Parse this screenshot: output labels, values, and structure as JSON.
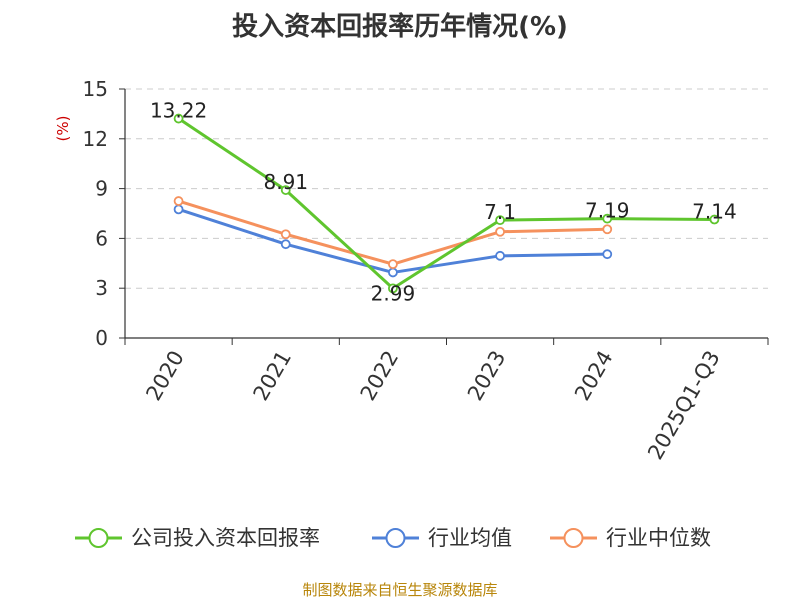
{
  "title": "投入资本回报率历年情况(%)",
  "source": "制图数据来自恒生聚源数据库",
  "colors": {
    "company": "#5fc52e",
    "industry_avg": "#4f81d8",
    "industry_median": "#f5915d",
    "axis": "#333333",
    "grid": "#cccccc",
    "unit": "#cc0000"
  },
  "chart_data": {
    "type": "line",
    "title": "投入资本回报率历年情况(%)",
    "ylabel": "(%)",
    "xlabel": "",
    "categories": [
      "2020",
      "2021",
      "2022",
      "2023",
      "2024",
      "2025Q1-Q3"
    ],
    "ylim": [
      0,
      15
    ],
    "yticks": [
      "0",
      "3",
      "6",
      "9",
      "12",
      "15"
    ],
    "grid": "horizontal dashed",
    "legend_position": "bottom",
    "series": [
      {
        "name": "公司投入资本回报率",
        "values": [
          13.22,
          8.91,
          2.99,
          7.1,
          7.19,
          7.14
        ],
        "labels": [
          "13.22",
          "8.91",
          "2.99",
          "7.1",
          "7.19",
          "7.14"
        ],
        "color": "#5fc52e"
      },
      {
        "name": "行业均值",
        "values": [
          7.75,
          5.65,
          3.95,
          4.95,
          5.05,
          null
        ],
        "color": "#4f81d8"
      },
      {
        "name": "行业中位数",
        "values": [
          8.25,
          6.25,
          4.45,
          6.4,
          6.55,
          null
        ],
        "color": "#f5915d"
      }
    ]
  }
}
